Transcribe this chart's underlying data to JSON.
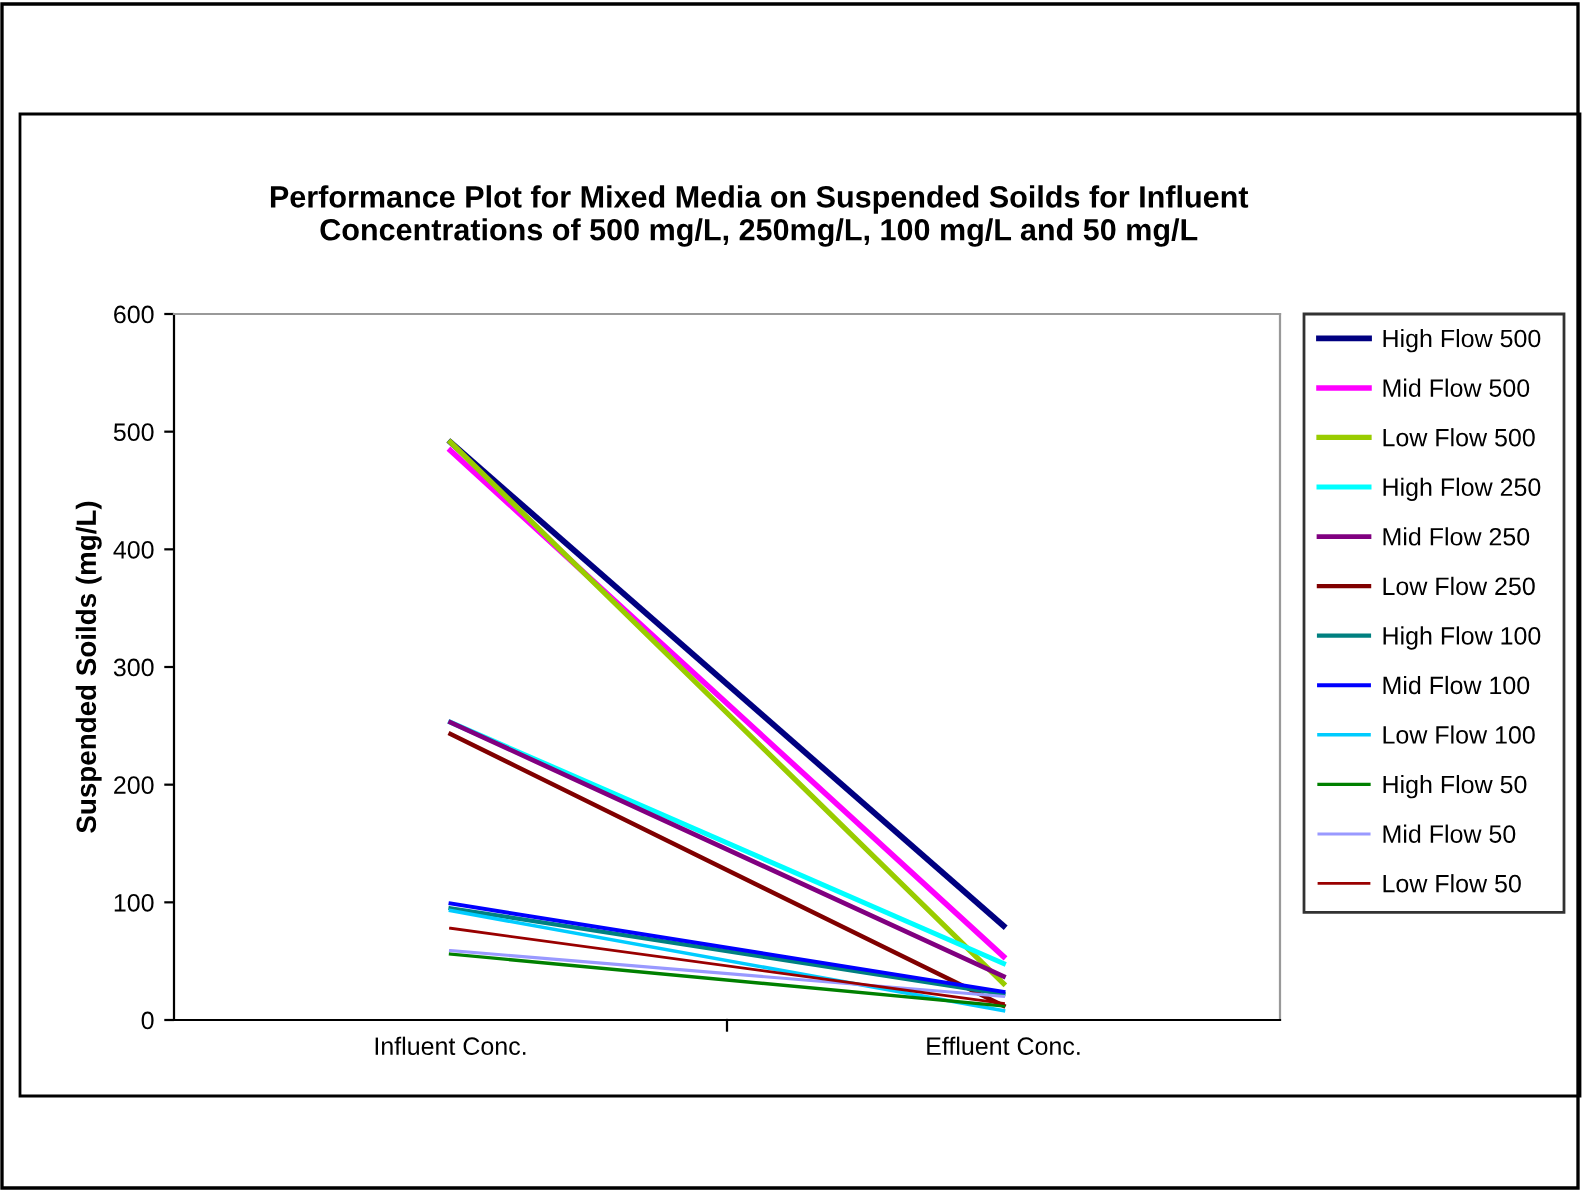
{
  "chart_data": {
    "type": "line",
    "title": "Performance Plot for Mixed Media on Suspended Soilds for Influent\nConcentrations of 500 mg/L, 250mg/L, 100 mg/L and 50 mg/L",
    "ylabel": "Suspended Soilds (mg/L)",
    "categories": [
      "Influent Conc.",
      "Effluent Conc."
    ],
    "ylim": [
      0,
      600
    ],
    "yticks": [
      0,
      100,
      200,
      300,
      400,
      500,
      600
    ],
    "grid": false,
    "legend": "right",
    "marker": "none",
    "line_style": "solid",
    "series": [
      {
        "name": "High Flow 500",
        "color": "#000080",
        "values": [
          491,
          80
        ]
      },
      {
        "name": "Mid Flow 500",
        "color": "#ff00ff",
        "values": [
          484,
          54
        ]
      },
      {
        "name": "Low Flow 500",
        "color": "#99cc00",
        "values": [
          491,
          31
        ]
      },
      {
        "name": "High Flow 250",
        "color": "#00ffff",
        "values": [
          253,
          48
        ]
      },
      {
        "name": "Mid Flow 250",
        "color": "#800080",
        "values": [
          253,
          37
        ]
      },
      {
        "name": "Low Flow 250",
        "color": "#800000",
        "values": [
          243,
          12
        ]
      },
      {
        "name": "High Flow 100",
        "color": "#008080",
        "values": [
          95,
          22
        ]
      },
      {
        "name": "Mid Flow 100",
        "color": "#0000ff",
        "values": [
          99,
          24
        ]
      },
      {
        "name": "Low Flow 100",
        "color": "#00ccff",
        "values": [
          93,
          8
        ]
      },
      {
        "name": "High Flow 50",
        "color": "#008000",
        "values": [
          56,
          12
        ]
      },
      {
        "name": "Mid Flow 50",
        "color": "#9999ff",
        "values": [
          59,
          20
        ]
      },
      {
        "name": "Low Flow 50",
        "color": "#990000",
        "values": [
          78,
          14
        ]
      }
    ]
  }
}
